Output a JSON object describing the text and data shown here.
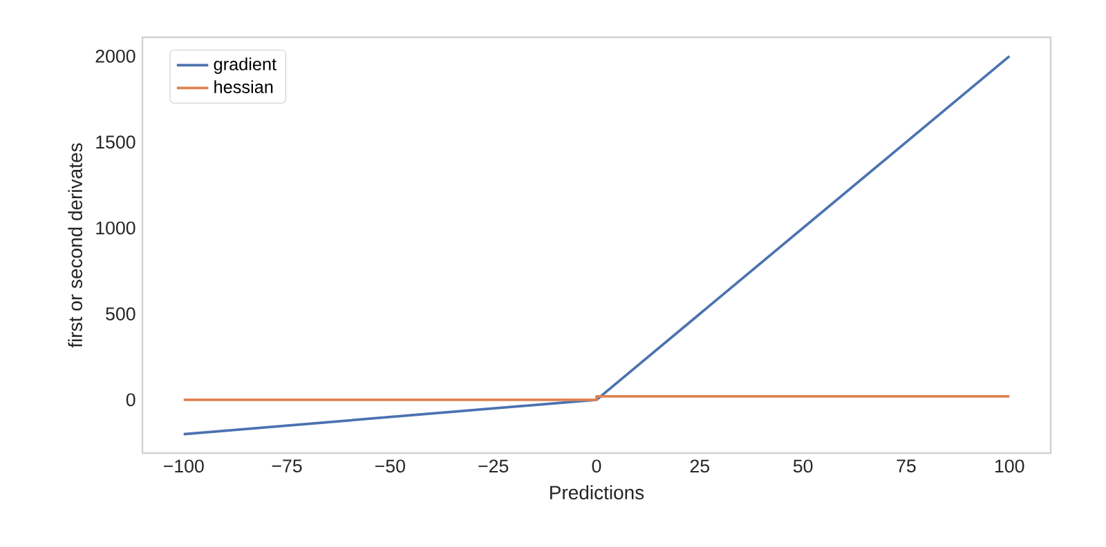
{
  "chart_data": {
    "type": "line",
    "xlabel": "Predictions",
    "ylabel": "first or second derivates",
    "xlim": [
      -110,
      110
    ],
    "ylim": [
      -310,
      2110
    ],
    "xticks": [
      {
        "value": -100,
        "label": "−100"
      },
      {
        "value": -75,
        "label": "−75"
      },
      {
        "value": -50,
        "label": "−50"
      },
      {
        "value": -25,
        "label": "−25"
      },
      0,
      25,
      50,
      75,
      100
    ],
    "yticks": [
      0,
      500,
      1000,
      1500,
      2000
    ],
    "grid": false,
    "legend": "top left",
    "line_style": "solid",
    "marker": "none",
    "series": [
      {
        "name": "gradient",
        "color": "#4c72b0",
        "x": [
          -100,
          0,
          100
        ],
        "values": [
          -200,
          0,
          2000
        ]
      },
      {
        "name": "hessian",
        "color": "#dd8452",
        "x": [
          -100,
          0,
          0,
          100
        ],
        "values": [
          0,
          0,
          20,
          20
        ]
      }
    ]
  }
}
